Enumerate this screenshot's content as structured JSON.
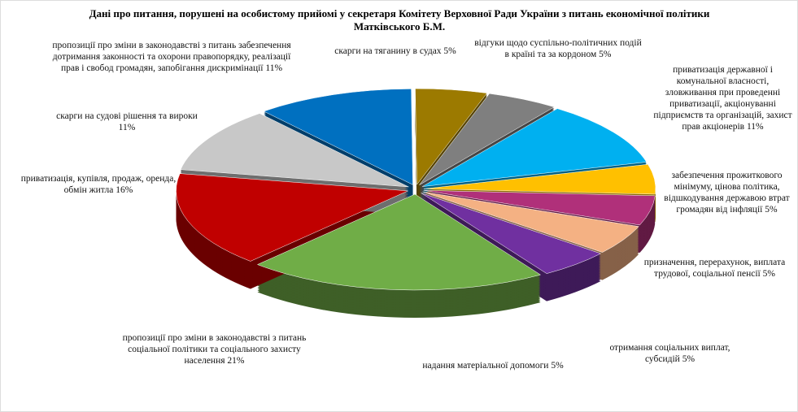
{
  "chart_data": {
    "type": "pie",
    "title": "Дані про питання, порушені на особистому прийомі у секретаря Комітету Верховної Ради України з питань економічної політики Матківського Б.М.",
    "categories": [
      "пропозиції про зміни в законодавстві з питань забезпечення дотримання законності та охорони правопорядку, реалізації прав і свобод громадян, запобігання дискримінації",
      "скарги на тяганину в судах",
      "відгуки щодо суспільно-політичних подій в країні та за кордоном",
      "приватизація державної і комунальної власності, зловживання при проведенні приватизації, акціонуванні підприємств та організацій, захист прав акціонерів",
      "забезпечення прожиткового мінімуму, цінова політика, відшкодування державою втрат громадян від інфляції",
      "призначення, перерахунок, виплата трудової, соціальної пенсії",
      "отримання соціальних виплат, субсидій",
      "надання матеріальної допомоги",
      "пропозиції про зміни в законодавстві з питань соціальної політики та соціального захисту населення",
      "приватизація, купівля, продаж, оренда, обмін житла",
      "скарги на судові рішення та вироки"
    ],
    "values": [
      11,
      5,
      5,
      11,
      5,
      5,
      5,
      5,
      21,
      16,
      11
    ],
    "value_labels": [
      "11%",
      "5%",
      "5%",
      "11%",
      "5%",
      "5%",
      "5%",
      "5%",
      "21%",
      "16%",
      "11%"
    ],
    "colors": [
      "#0070c0",
      "#9c7a00",
      "#7f7f7f",
      "#00b0f0",
      "#ffc000",
      "#b0307a",
      "#f4b183",
      "#7030a0",
      "#70ad47",
      "#c00000",
      "#c8c8c8"
    ]
  }
}
